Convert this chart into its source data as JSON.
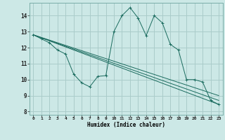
{
  "title": "",
  "xlabel": "Humidex (Indice chaleur)",
  "background_color": "#cce8e6",
  "grid_color": "#aaccca",
  "line_color": "#1a6b5e",
  "xlim": [
    -0.5,
    23.5
  ],
  "ylim": [
    7.8,
    14.8
  ],
  "yticks": [
    8,
    9,
    10,
    11,
    12,
    13,
    14
  ],
  "xticks": [
    0,
    1,
    2,
    3,
    4,
    5,
    6,
    7,
    8,
    9,
    10,
    11,
    12,
    13,
    14,
    15,
    16,
    17,
    18,
    19,
    20,
    21,
    22,
    23
  ],
  "line1_x": [
    0,
    1,
    2,
    3,
    4,
    5,
    6,
    7,
    8,
    9,
    10,
    11,
    12,
    13,
    14,
    15,
    16,
    17,
    18,
    19,
    20,
    21,
    22,
    23
  ],
  "line1_y": [
    12.8,
    12.55,
    12.3,
    11.85,
    11.6,
    10.35,
    9.8,
    9.55,
    10.2,
    10.25,
    13.0,
    14.0,
    14.5,
    13.85,
    12.75,
    14.0,
    13.55,
    12.2,
    11.85,
    10.0,
    10.0,
    9.85,
    8.7,
    8.45
  ],
  "line2_x": [
    0,
    23
  ],
  "line2_y": [
    12.8,
    8.45
  ],
  "line3_x": [
    0,
    23
  ],
  "line3_y": [
    12.8,
    8.7
  ],
  "line4_x": [
    0,
    23
  ],
  "line4_y": [
    12.8,
    9.0
  ]
}
